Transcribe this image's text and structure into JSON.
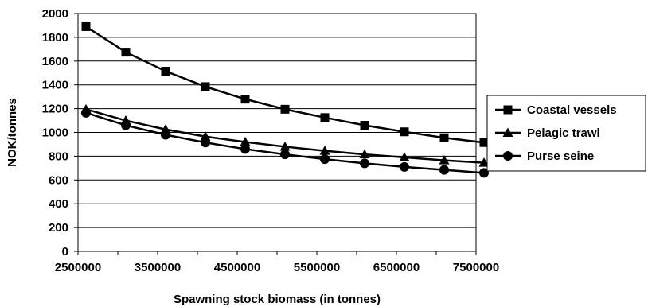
{
  "chart_data": {
    "type": "line",
    "title": "",
    "xlabel": "Spawning stock biomass (in tonnes)",
    "ylabel": "NOK/tonnes",
    "xlim": [
      2500000,
      7500000
    ],
    "ylim": [
      0,
      2000
    ],
    "x_ticks": [
      "2500000",
      "3500000",
      "4500000",
      "5500000",
      "6500000",
      "7500000"
    ],
    "y_ticks": [
      "0",
      "200",
      "400",
      "600",
      "800",
      "1000",
      "1200",
      "1400",
      "1600",
      "1800",
      "2000"
    ],
    "grid": "horizontal",
    "legend_position": "right",
    "x": [
      2600000,
      3100000,
      3600000,
      4100000,
      4600000,
      5100000,
      5600000,
      6100000,
      6600000,
      7100000,
      7600000
    ],
    "series": [
      {
        "name": "Coastal vessels",
        "marker": "square",
        "color": "#000000",
        "values": [
          1890,
          1675,
          1515,
          1385,
          1280,
          1195,
          1125,
          1060,
          1005,
          955,
          915
        ]
      },
      {
        "name": "Pelagic  trawl",
        "marker": "triangle",
        "color": "#000000",
        "values": [
          1195,
          1100,
          1025,
          965,
          920,
          880,
          845,
          815,
          790,
          765,
          745
        ]
      },
      {
        "name": "Purse seine",
        "marker": "circle",
        "color": "#000000",
        "values": [
          1165,
          1060,
          980,
          915,
          860,
          815,
          775,
          740,
          710,
          685,
          660
        ]
      }
    ]
  }
}
